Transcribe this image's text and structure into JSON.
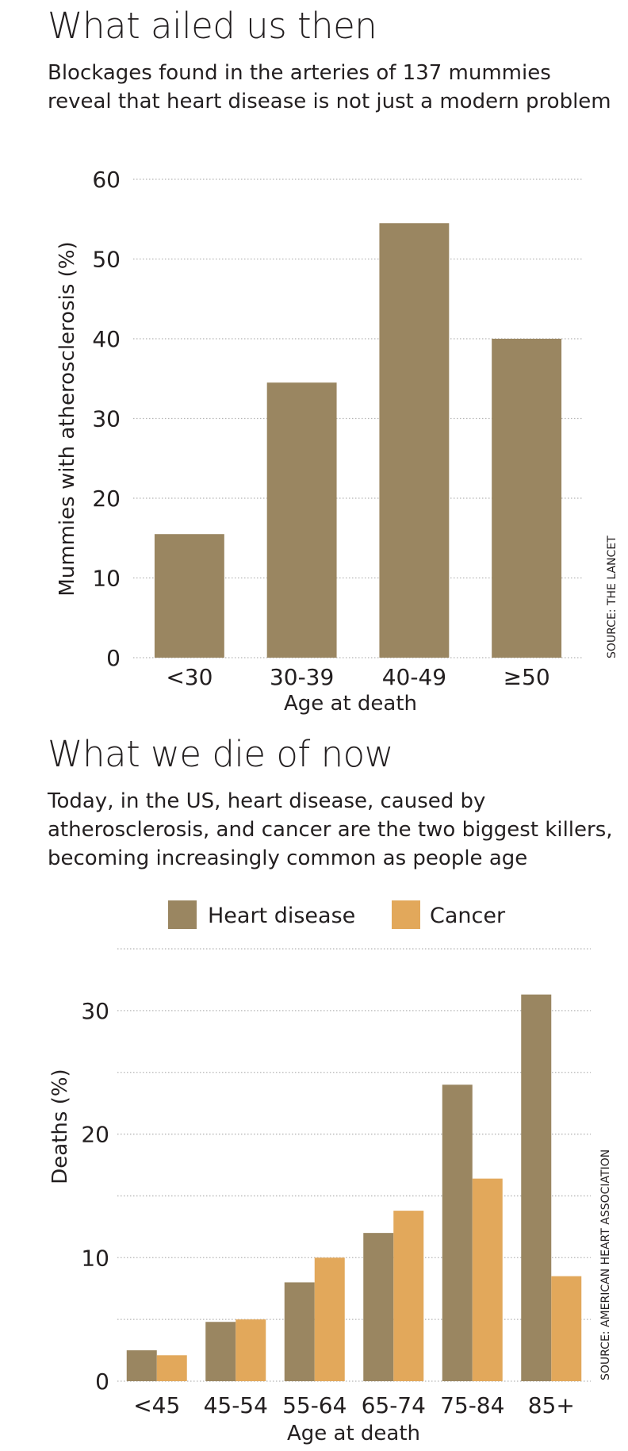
{
  "section1": {
    "title": "What ailed us then",
    "subtitle_line1": "Blockages found in the arteries of 137 mummies",
    "subtitle_line2": "reveal that heart disease is not just a modern problem"
  },
  "section2": {
    "title": "What we die of now",
    "subtitle_line1": "Today, in the US, heart disease, caused by",
    "subtitle_line2": "atherosclerosis, and cancer are the two biggest killers,",
    "subtitle_line3": "becoming increasingly common as people age"
  },
  "colors": {
    "heart": "#9a8661",
    "cancer": "#e2a85b",
    "grid": "#b5b5b5",
    "text": "#231f20"
  },
  "chart_data": [
    {
      "type": "bar",
      "title": "What ailed us then",
      "categories": [
        "<30",
        "30-39",
        "40-49",
        "≥50"
      ],
      "values": [
        15.5,
        34.5,
        54.5,
        40
      ],
      "xlabel": "Age at death",
      "ylabel": "Mummies with atherosclerosis (%)",
      "ylim": [
        0,
        60
      ],
      "yticks": [
        0,
        10,
        20,
        30,
        40,
        50,
        60
      ],
      "grid": true,
      "source": "SOURCE: THE LANCET"
    },
    {
      "type": "bar",
      "title": "What we die of now",
      "categories": [
        "<45",
        "45-54",
        "55-64",
        "65-74",
        "75-84",
        "85+"
      ],
      "series": [
        {
          "name": "Heart disease",
          "values": [
            2.5,
            4.8,
            8,
            12,
            24,
            31.3
          ]
        },
        {
          "name": "Cancer",
          "values": [
            2.1,
            5,
            10,
            13.8,
            16.4,
            8.5
          ]
        }
      ],
      "xlabel": "Age at death",
      "ylabel": "Deaths (%)",
      "ylim": [
        0,
        35
      ],
      "yticks": [
        0,
        10,
        20,
        30
      ],
      "grid_lines": [
        0,
        5,
        10,
        15,
        20,
        25,
        30,
        35
      ],
      "grid": true,
      "legend_position": "top-center",
      "source": "SOURCE: AMERICAN HEART ASSOCIATION"
    }
  ]
}
